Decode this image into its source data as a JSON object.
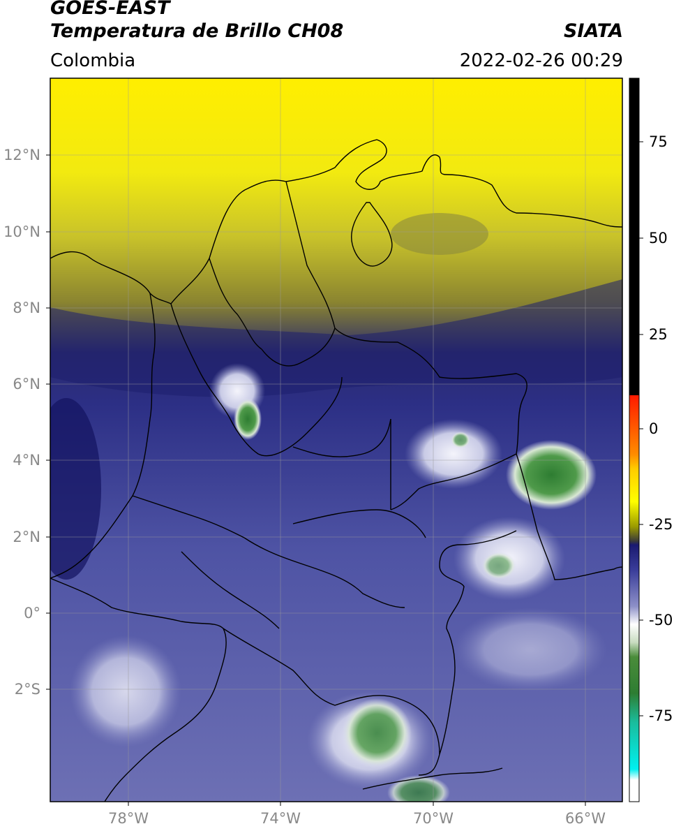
{
  "header": {
    "title_line1": "GOES-EAST",
    "title_line2": "Temperatura de Brillo CH08",
    "organization": "SIATA",
    "region": "Colombia",
    "timestamp": "2022-02-26 00:29"
  },
  "map": {
    "lat_labels": [
      "12°N",
      "10°N",
      "8°N",
      "6°N",
      "4°N",
      "2°N",
      "0°",
      "2°S"
    ],
    "lon_labels": [
      "78°W",
      "74°W",
      "70°W",
      "66°W"
    ],
    "gridlines": true,
    "coastline_color": "#000000"
  },
  "colorbar": {
    "ticks": [
      "75",
      "50",
      "25",
      "0",
      "-25",
      "-50",
      "-75"
    ],
    "colors": {
      "warm_top": "#000000",
      "red": "#ff1a00",
      "orange": "#ff8c00",
      "yellow": "#ffff00",
      "olive": "#6e6e00",
      "dark_blue": "#0a0a6e",
      "blue": "#3a3d9a",
      "pale": "#c8c8e6",
      "white": "#ffffff",
      "green": "#2e7d32",
      "teal": "#1abc9c",
      "cyan": "#00e5ee"
    }
  }
}
